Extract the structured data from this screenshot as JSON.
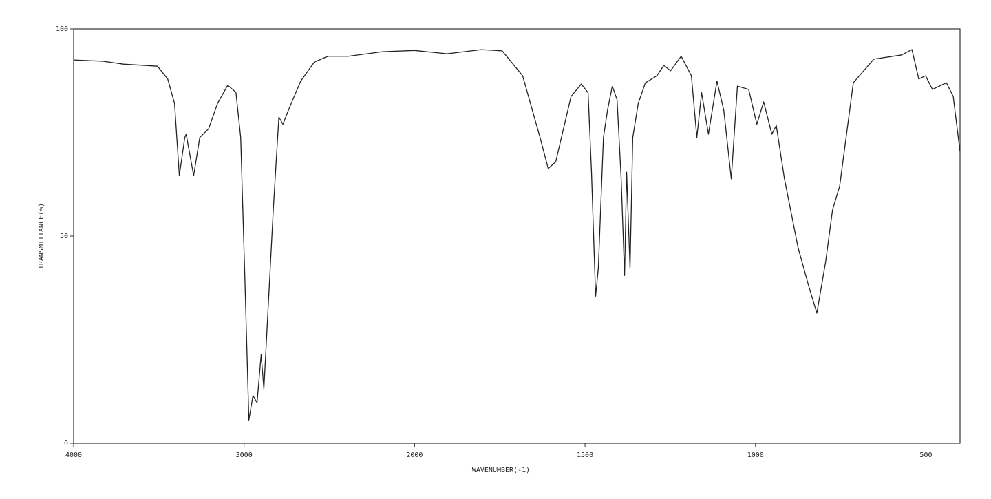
{
  "chart_data": {
    "type": "line",
    "xlabel": "WAVENUMBER(-1)",
    "ylabel": "TRANSMITTANCE(%)",
    "xlim": [
      4000,
      400
    ],
    "ylim": [
      0,
      100
    ],
    "x_scale_change": 2000,
    "x_scale_ratio": 2,
    "xticks": [
      4000,
      3000,
      2000,
      1500,
      1000,
      500
    ],
    "yticks": [
      0,
      50,
      100
    ],
    "series": [
      {
        "color": "#222222",
        "x": [
          4000,
          3828,
          3708,
          3508,
          3448,
          3408,
          3380,
          3348,
          3340,
          3296,
          3260,
          3208,
          3156,
          3096,
          3048,
          3020,
          2996,
          2972,
          2948,
          2924,
          2900,
          2884,
          2868,
          2828,
          2796,
          2772,
          2740,
          2668,
          2588,
          2508,
          2388,
          2188,
          2000,
          1905,
          1804,
          1743,
          1683,
          1632,
          1608,
          1586,
          1541,
          1511,
          1491,
          1481,
          1469,
          1461,
          1446,
          1434,
          1420,
          1406,
          1394,
          1384,
          1378,
          1368,
          1360,
          1344,
          1323,
          1289,
          1269,
          1249,
          1218,
          1188,
          1172,
          1158,
          1138,
          1113,
          1093,
          1071,
          1053,
          1020,
          996,
          976,
          952,
          939,
          915,
          875,
          844,
          820,
          794,
          774,
          753,
          713,
          653,
          572,
          541,
          521,
          501,
          481,
          440,
          420,
          400
        ],
        "values": [
          92.5,
          92.2,
          91.5,
          91,
          87.9,
          82,
          64.6,
          73.8,
          74.6,
          64.6,
          73.8,
          75.9,
          82,
          86.4,
          84.7,
          73.8,
          40.5,
          5.6,
          11.5,
          9.8,
          21.4,
          13.1,
          25.6,
          57,
          78.7,
          77,
          80.4,
          87.4,
          92,
          93.4,
          93.4,
          94.5,
          94.8,
          94,
          95,
          94.7,
          88.7,
          73.8,
          66.3,
          67.9,
          83.7,
          86.7,
          84.6,
          65.4,
          35.5,
          42.2,
          73.8,
          80.4,
          86.2,
          82.9,
          63.8,
          40.5,
          65.4,
          42.2,
          73.8,
          82,
          87,
          88.7,
          91.2,
          89.9,
          93.4,
          88.7,
          73.8,
          84.6,
          74.6,
          87.4,
          80.4,
          63.8,
          86.2,
          85.4,
          77,
          82.4,
          74.6,
          76.7,
          63.8,
          47.2,
          38,
          31.4,
          43.9,
          56.3,
          62.1,
          87,
          92.7,
          93.7,
          95,
          87.9,
          88.7,
          85.4,
          87,
          83.7,
          70.4
        ]
      }
    ]
  }
}
